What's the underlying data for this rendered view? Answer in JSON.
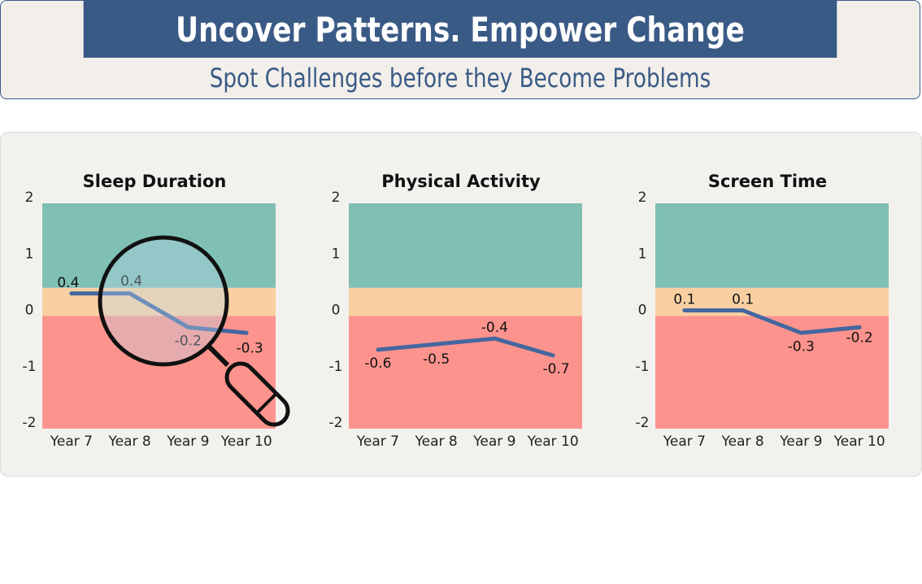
{
  "header": {
    "title": "Uncover Patterns. Empower Change",
    "subtitle": "Spot Challenges before they Become Problems"
  },
  "colors": {
    "header_bg": "#3a5a86",
    "zone_good": "#7fbfb4",
    "zone_watch": "#f9cfa2",
    "zone_concern": "#fc948d",
    "line": "#4467a0"
  },
  "magnifier": {
    "icon": "magnifying-glass-icon",
    "over_chart": "Sleep Duration"
  },
  "chart_data": [
    {
      "type": "line",
      "title": "Sleep Duration",
      "categories": [
        "Year 7",
        "Year 8",
        "Year 9",
        "Year 10"
      ],
      "values": [
        0.4,
        0.4,
        -0.2,
        -0.3
      ],
      "ylim": [
        -2,
        2
      ],
      "yticks": [
        "2",
        "1",
        "0",
        "-1",
        "-2"
      ],
      "bands": [
        {
          "from": 0.5,
          "to": 2,
          "zone": "good"
        },
        {
          "from": 0,
          "to": 0.5,
          "zone": "watch"
        },
        {
          "from": -2,
          "to": 0,
          "zone": "concern"
        }
      ]
    },
    {
      "type": "line",
      "title": "Physical Activity",
      "categories": [
        "Year 7",
        "Year 8",
        "Year 9",
        "Year 10"
      ],
      "values": [
        -0.6,
        -0.5,
        -0.4,
        -0.7
      ],
      "ylim": [
        -2,
        2
      ],
      "yticks": [
        "2",
        "1",
        "0",
        "-1",
        "-2"
      ],
      "bands": [
        {
          "from": 0.5,
          "to": 2,
          "zone": "good"
        },
        {
          "from": 0,
          "to": 0.5,
          "zone": "watch"
        },
        {
          "from": -2,
          "to": 0,
          "zone": "concern"
        }
      ]
    },
    {
      "type": "line",
      "title": "Screen Time",
      "categories": [
        "Year 7",
        "Year 8",
        "Year 9",
        "Year 10"
      ],
      "values": [
        0.1,
        0.1,
        -0.3,
        -0.2
      ],
      "ylim": [
        -2,
        2
      ],
      "yticks": [
        "2",
        "1",
        "0",
        "-1",
        "-2"
      ],
      "bands": [
        {
          "from": 0.5,
          "to": 2,
          "zone": "good"
        },
        {
          "from": 0,
          "to": 0.5,
          "zone": "watch"
        },
        {
          "from": -2,
          "to": 0,
          "zone": "concern"
        }
      ]
    }
  ]
}
